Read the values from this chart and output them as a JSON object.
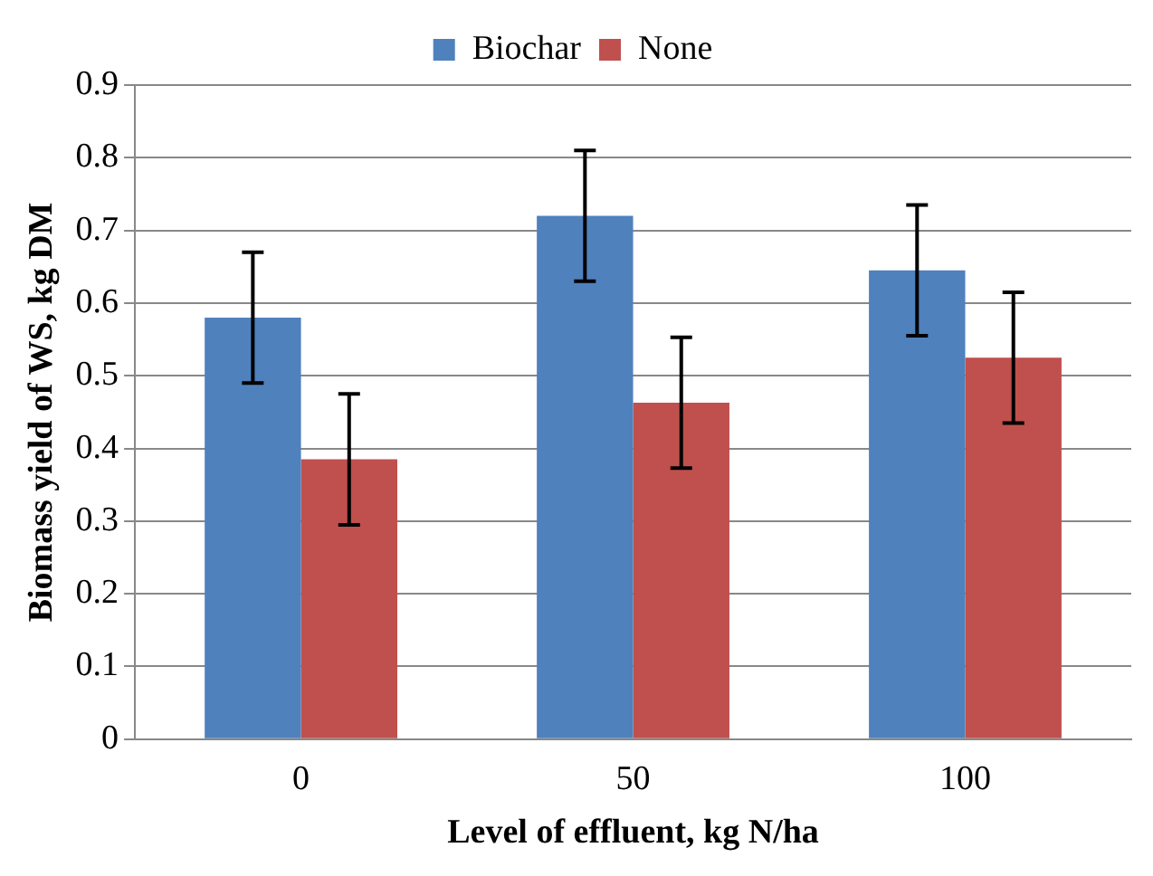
{
  "chart_data": {
    "type": "bar",
    "xlabel": "Level of effluent, kg N/ha",
    "ylabel": "Biomass yield of WS, kg DM",
    "categories": [
      "0",
      "50",
      "100"
    ],
    "series": [
      {
        "name": "Biochar",
        "color": "#4f81bd",
        "values": [
          0.58,
          0.72,
          0.645
        ],
        "errors": [
          0.09,
          0.09,
          0.09
        ]
      },
      {
        "name": "None",
        "color": "#c0504d",
        "values": [
          0.385,
          0.463,
          0.525
        ],
        "errors": [
          0.09,
          0.09,
          0.09
        ]
      }
    ],
    "ylim": [
      0,
      0.9
    ],
    "yticks": [
      0,
      0.1,
      0.2,
      0.3,
      0.4,
      0.5,
      0.6,
      0.7,
      0.8,
      0.9
    ],
    "grid": "y",
    "legend": "top"
  }
}
